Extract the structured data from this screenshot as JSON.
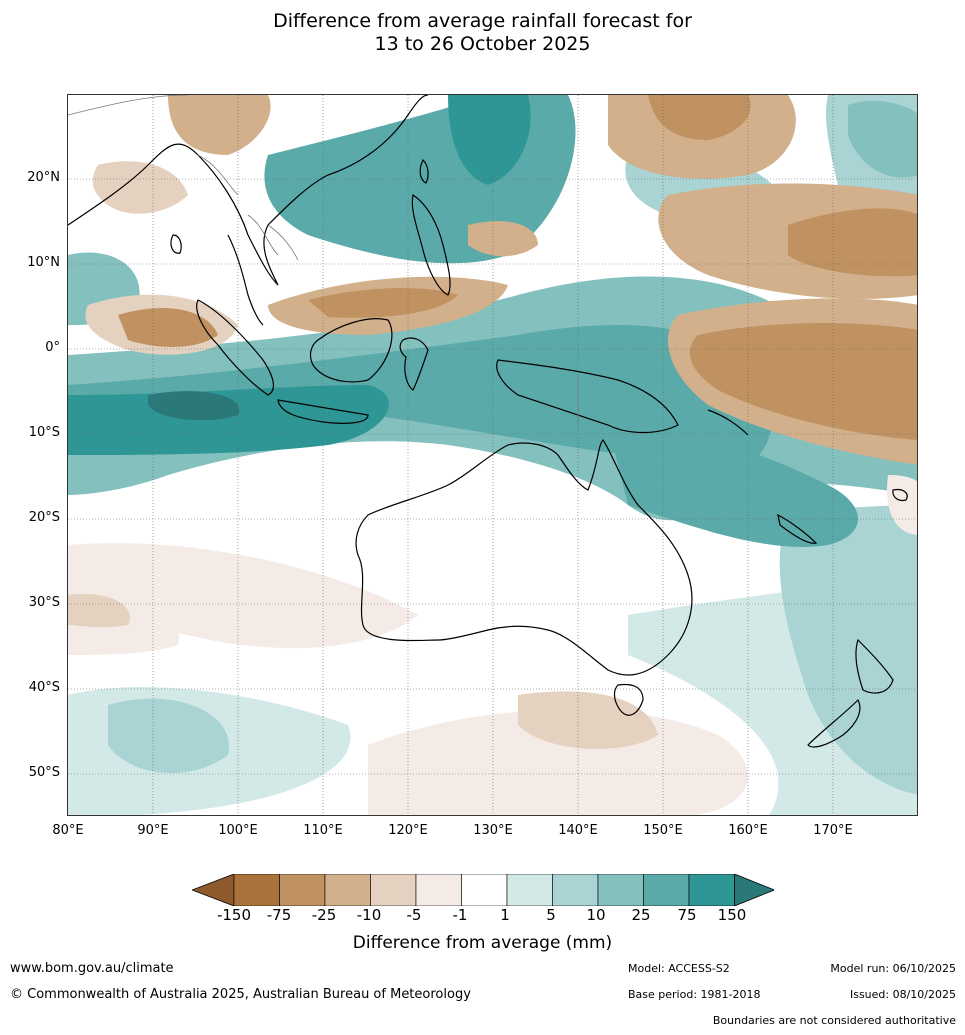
{
  "title": {
    "line1": "Difference from average rainfall forecast for",
    "line2": "13 to 26 October 2025"
  },
  "map": {
    "latitude_labels": [
      "20°N",
      "10°N",
      "0°",
      "10°S",
      "20°S",
      "30°S",
      "40°S",
      "50°S"
    ],
    "longitude_labels": [
      "80°E",
      "90°E",
      "100°E",
      "110°E",
      "120°E",
      "130°E",
      "140°E",
      "150°E",
      "160°E",
      "170°E"
    ],
    "extent": {
      "lon": [
        80,
        180
      ],
      "lat": [
        -55,
        30
      ]
    }
  },
  "legend": {
    "title": "Difference from average (mm)",
    "labels": [
      "-150",
      "-75",
      "-25",
      "-10",
      "-5",
      "-1",
      "1",
      "5",
      "10",
      "25",
      "75",
      "150"
    ],
    "colors": [
      "#8f5a2b",
      "#ab733c",
      "#c19261",
      "#d2b08b",
      "#e5d1bf",
      "#f4ebe6",
      "#ffffff",
      "#d3e9e8",
      "#a9d4d3",
      "#84c0be",
      "#5aaaa9",
      "#2e9695",
      "#2a7878"
    ]
  },
  "footer": {
    "website": "www.bom.gov.au/climate",
    "copyright": "© Commonwealth of Australia 2025, Australian Bureau of Meteorology",
    "model": "Model: ACCESS-S2",
    "base_period": "Base period: 1981-2018",
    "model_run": "Model run: 06/10/2025",
    "issued": "Issued: 08/10/2025",
    "disclaimer": "Boundaries are not considered authoritative"
  }
}
